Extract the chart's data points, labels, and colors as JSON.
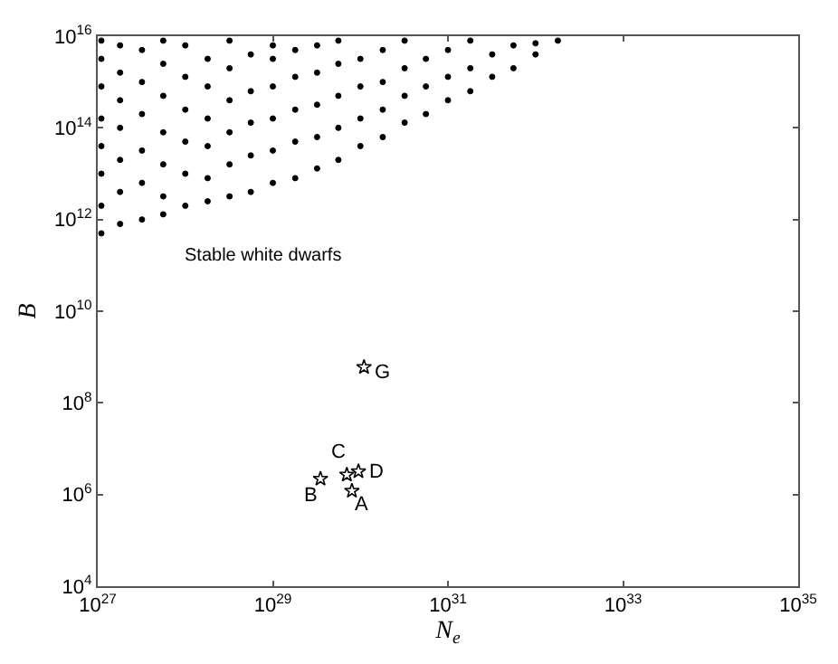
{
  "chart_data": {
    "type": "scatter",
    "xlabel": "N$_{e}$",
    "ylabel": "B",
    "xlim": [
      1e+27,
      1e+35
    ],
    "ylim": [
      10000.0,
      1e+16
    ],
    "log": "xy",
    "xticks": [
      {
        "value": 1e+27,
        "label": "10$^{27}$"
      },
      {
        "value": 1e+29,
        "label": "10$^{29}$"
      },
      {
        "value": 1e+31,
        "label": "10$^{31}$"
      },
      {
        "value": 1e+33,
        "label": "10$^{33}$"
      },
      {
        "value": 1e+35,
        "label": "10$^{35}$"
      }
    ],
    "yticks": [
      {
        "value": 10000.0,
        "label": "10$^{4}$"
      },
      {
        "value": 1000000.0,
        "label": "10$^{6}$"
      },
      {
        "value": 100000000.0,
        "label": "10$^{8}$"
      },
      {
        "value": 10000000000.0,
        "label": "10$^{10}$"
      },
      {
        "value": 1000000000000.0,
        "label": "10$^{12}$"
      },
      {
        "value": 100000000000000.0,
        "label": "10$^{14}$"
      },
      {
        "value": 1e+16,
        "label": "10$^{16}$"
      }
    ],
    "series": [
      {
        "color": "#000000",
        "marker": "circle",
        "x": [
          1.1e+27,
          1.1e+27,
          1.1e+27,
          1.1e+27,
          1.1e+27,
          1.1e+27,
          1.1e+27,
          1.1e+27,
          1.8e+27,
          1.8e+27,
          1.8e+27,
          1.8e+27,
          1.8e+27,
          1.8e+27,
          1.8e+27,
          3.2e+27,
          3.2e+27,
          3.2e+27,
          3.2e+27,
          3.2e+27,
          3.2e+27,
          5.6e+27,
          5.6e+27,
          5.6e+27,
          5.6e+27,
          5.6e+27,
          5.6e+27,
          5.6e+27,
          1e+28,
          1e+28,
          1e+28,
          1e+28,
          1e+28,
          1e+28,
          1.8e+28,
          1.8e+28,
          1.8e+28,
          1.8e+28,
          1.8e+28,
          1.8e+28,
          3.2e+28,
          3.2e+28,
          3.2e+28,
          3.2e+28,
          3.2e+28,
          3.2e+28,
          5.6e+28,
          5.6e+28,
          5.6e+28,
          5.6e+28,
          5.6e+28,
          1e+29,
          1e+29,
          1e+29,
          1e+29,
          1e+29,
          1e+29,
          1.8e+29,
          1.8e+29,
          1.8e+29,
          1.8e+29,
          1.8e+29,
          3.2e+29,
          3.2e+29,
          3.2e+29,
          3.2e+29,
          3.2e+29,
          5.6e+29,
          5.6e+29,
          5.6e+29,
          5.6e+29,
          5.6e+29,
          1e+30,
          1e+30,
          1e+30,
          1e+30,
          1.8e+30,
          1.8e+30,
          1.8e+30,
          1.8e+30,
          3.2e+30,
          3.2e+30,
          3.2e+30,
          3.2e+30,
          5.6e+30,
          5.6e+30,
          5.6e+30,
          1e+31,
          1e+31,
          1e+31,
          1.8e+31,
          1.8e+31,
          1.8e+31,
          3.2e+31,
          3.2e+31,
          5.6e+31,
          5.6e+31,
          1e+32,
          1e+32,
          1.8e+32
        ],
        "values": [
          500000000000.0,
          2000000000000.0,
          10000000000000.0,
          40000000000000.0,
          160000000000000.0,
          800000000000000.0,
          3200000000000000.0,
          8000000000000000.0,
          800000000000.0,
          4000000000000.0,
          20000000000000.0,
          100000000000000.0,
          400000000000000.0,
          1600000000000000.0,
          6300000000000000.0,
          1000000000000.0,
          6300000000000.0,
          32000000000000.0,
          200000000000000.0,
          1000000000000000.0,
          5000000000000000.0,
          1300000000000.0,
          3200000000000.0,
          16000000000000.0,
          80000000000000.0,
          500000000000000.0,
          2500000000000000.0,
          8000000000000000.0,
          2000000000000.0,
          10000000000000.0,
          50000000000000.0,
          250000000000000.0,
          1300000000000000.0,
          6300000000000000.0,
          2500000000000.0,
          8000000000000.0,
          40000000000000.0,
          160000000000000.0,
          800000000000000.0,
          3200000000000000.0,
          3200000000000.0,
          16000000000000.0,
          80000000000000.0,
          400000000000000.0,
          2000000000000000.0,
          8000000000000000.0,
          4000000000000.0,
          25000000000000.0,
          130000000000000.0,
          630000000000000.0,
          4000000000000000.0,
          6300000000000.0,
          32000000000000.0,
          160000000000000.0,
          800000000000000.0,
          3200000000000000.0,
          6300000000000000.0,
          8000000000000.0,
          50000000000000.0,
          250000000000000.0,
          1300000000000000.0,
          5000000000000000.0,
          13000000000000.0,
          63000000000000.0,
          320000000000000.0,
          1600000000000000.0,
          6300000000000000.0,
          20000000000000.0,
          100000000000000.0,
          500000000000000.0,
          2500000000000000.0,
          8000000000000000.0,
          40000000000000.0,
          160000000000000.0,
          800000000000000.0,
          3200000000000000.0,
          63000000000000.0,
          250000000000000.0,
          1000000000000000.0,
          5000000000000000.0,
          130000000000000.0,
          500000000000000.0,
          2000000000000000.0,
          8000000000000000.0,
          200000000000000.0,
          800000000000000.0,
          3200000000000000.0,
          400000000000000.0,
          1300000000000000.0,
          5000000000000000.0,
          630000000000000.0,
          2000000000000000.0,
          8000000000000000.0,
          1300000000000000.0,
          4000000000000000.0,
          2000000000000000.0,
          6300000000000000.0,
          4000000000000000.0,
          7000000000000000.0,
          8000000000000000.0
        ]
      },
      {
        "color": "#000000",
        "marker": "star",
        "x": [
          1.1e+30,
          7e+29,
          9.5e+29,
          3.5e+29,
          8e+29
        ],
        "values": [
          600000000.0,
          2700000.0,
          3200000.0,
          2200000.0,
          1200000.0
        ]
      }
    ],
    "annotations": [
      "Stable white dwarfs",
      {
        "text": "G",
        "x": 1.1e+30,
        "y": 600000000.0
      },
      {
        "text": "C",
        "x": 7e+29,
        "y": 2700000.0
      },
      {
        "text": "D",
        "x": 9.5e+29,
        "y": 3200000.0
      },
      {
        "text": "B",
        "x": 3.5e+29,
        "y": 2200000.0
      },
      {
        "text": "A",
        "x": 8e+29,
        "y": 1200000.0
      }
    ]
  }
}
